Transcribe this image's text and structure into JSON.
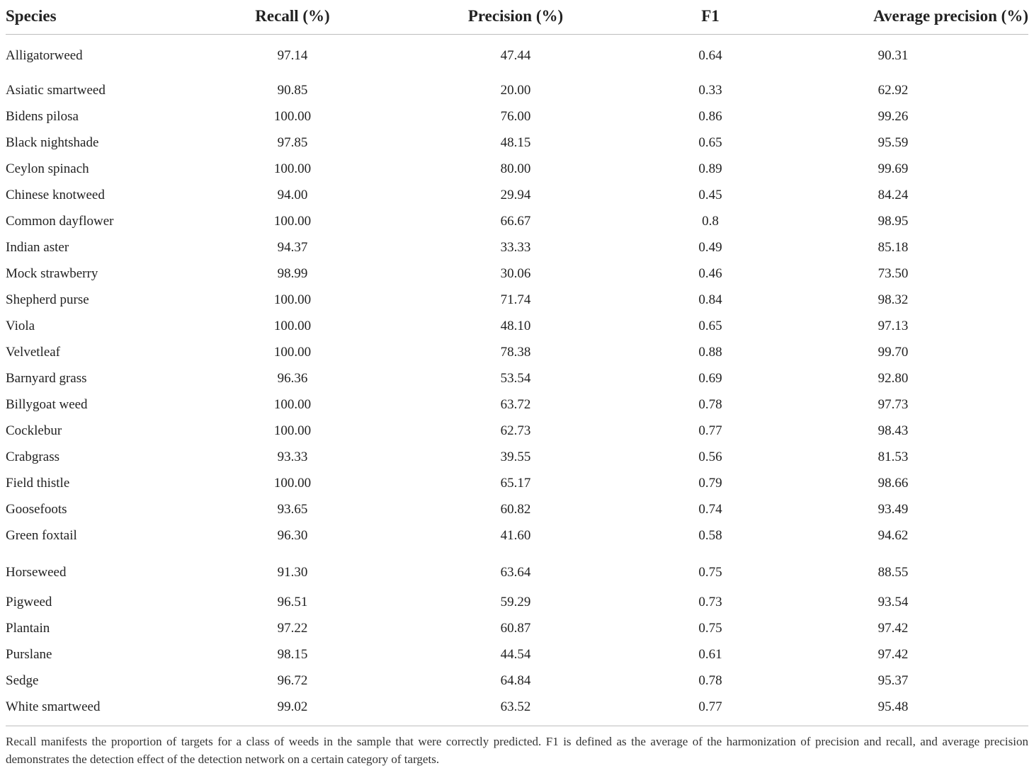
{
  "table": {
    "headers": [
      "Species",
      "Recall (%)",
      "Precision (%)",
      "F1",
      "Average precision (%)"
    ],
    "rows": [
      [
        "Alligatorweed",
        "97.14",
        "47.44",
        "0.64",
        "90.31"
      ],
      [
        "Asiatic smartweed",
        "90.85",
        "20.00",
        "0.33",
        "62.92"
      ],
      [
        "Bidens pilosa",
        "100.00",
        "76.00",
        "0.86",
        "99.26"
      ],
      [
        "Black nightshade",
        "97.85",
        "48.15",
        "0.65",
        "95.59"
      ],
      [
        "Ceylon spinach",
        "100.00",
        "80.00",
        "0.89",
        "99.69"
      ],
      [
        "Chinese knotweed",
        "94.00",
        "29.94",
        "0.45",
        "84.24"
      ],
      [
        "Common dayflower",
        "100.00",
        "66.67",
        "0.8",
        "98.95"
      ],
      [
        "Indian aster",
        "94.37",
        "33.33",
        "0.49",
        "85.18"
      ],
      [
        "Mock strawberry",
        "98.99",
        "30.06",
        "0.46",
        "73.50"
      ],
      [
        "Shepherd purse",
        "100.00",
        "71.74",
        "0.84",
        "98.32"
      ],
      [
        "Viola",
        "100.00",
        "48.10",
        "0.65",
        "97.13"
      ],
      [
        "Velvetleaf",
        "100.00",
        "78.38",
        "0.88",
        "99.70"
      ],
      [
        "Barnyard grass",
        "96.36",
        "53.54",
        "0.69",
        "92.80"
      ],
      [
        "Billygoat weed",
        "100.00",
        "63.72",
        "0.78",
        "97.73"
      ],
      [
        "Cocklebur",
        "100.00",
        "62.73",
        "0.77",
        "98.43"
      ],
      [
        "Crabgrass",
        "93.33",
        "39.55",
        "0.56",
        "81.53"
      ],
      [
        "Field thistle",
        "100.00",
        "65.17",
        "0.79",
        "98.66"
      ],
      [
        "Goosefoots",
        "93.65",
        "60.82",
        "0.74",
        "93.49"
      ],
      [
        "Green foxtail",
        "96.30",
        "41.60",
        "0.58",
        "94.62"
      ],
      [
        "Horseweed",
        "91.30",
        "63.64",
        "0.75",
        "88.55"
      ],
      [
        "Pigweed",
        "96.51",
        "59.29",
        "0.73",
        "93.54"
      ],
      [
        "Plantain",
        "97.22",
        "60.87",
        "0.75",
        "97.42"
      ],
      [
        "Purslane",
        "98.15",
        "44.54",
        "0.61",
        "97.42"
      ],
      [
        "Sedge",
        "96.72",
        "64.84",
        "0.78",
        "95.37"
      ],
      [
        "White smartweed",
        "99.02",
        "63.52",
        "0.77",
        "95.48"
      ]
    ]
  },
  "footnote": "Recall manifests the proportion of targets for a class of weeds in the sample that were correctly predicted. F1 is defined as the average of the harmonization of precision and recall, and average precision demonstrates the detection effect of the detection network on a certain category of targets."
}
